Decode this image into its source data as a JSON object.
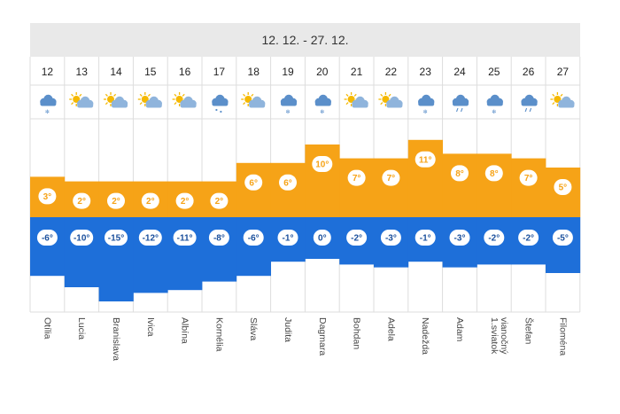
{
  "header": {
    "range": "12. 12. - 27. 12."
  },
  "colors": {
    "header_bg": "#e9e9e9",
    "warm": "#f6a317",
    "cold": "#1e6fd9",
    "grid": "#dddddd",
    "cloud": "#8fb4dc",
    "cloud_dark": "#5b8fca",
    "sun": "#f5b800"
  },
  "chart_data": {
    "type": "bar",
    "categories": [
      "12",
      "13",
      "14",
      "15",
      "16",
      "17",
      "18",
      "19",
      "20",
      "21",
      "22",
      "23",
      "24",
      "25",
      "26",
      "27"
    ],
    "series": [
      {
        "values": [
          3,
          2,
          2,
          2,
          2,
          2,
          6,
          6,
          10,
          7,
          7,
          11,
          8,
          8,
          7,
          5
        ]
      },
      {
        "values": [
          -6,
          -10,
          -15,
          -12,
          -11,
          -8,
          -6,
          -1,
          0,
          -2,
          -3,
          -1,
          -3,
          -2,
          -2,
          -5
        ]
      }
    ],
    "max_labels": [
      "3°",
      "2°",
      "2°",
      "2°",
      "2°",
      "2°",
      "6°",
      "6°",
      "10°",
      "7°",
      "7°",
      "11°",
      "8°",
      "8°",
      "7°",
      "5°"
    ],
    "min_labels": [
      "-6°",
      "-10°",
      "-15°",
      "-12°",
      "-11°",
      "-8°",
      "-6°",
      "-1°",
      "0°",
      "-2°",
      "-3°",
      "-1°",
      "-3°",
      "-2°",
      "-2°",
      "-5°"
    ],
    "names": [
      "Otília",
      "Lucia",
      "Branislava",
      "Ivica",
      "Albína",
      "Kornélia",
      "Sláva",
      "Judita",
      "Dagmara",
      "Bohdan",
      "Adela",
      "Nadežda",
      "Adam",
      "1.sviatok vianočný",
      "Štefan",
      "Filoména"
    ],
    "icons": [
      "cloud-snow-icon",
      "sun-cloud-icon",
      "sun-cloud-icon",
      "sun-cloud-icon",
      "sun-cloud-icon",
      "cloud-sleet-icon",
      "sun-cloud-icon",
      "cloud-snow-icon",
      "cloud-snow-icon",
      "sun-cloud-icon",
      "sun-cloud-icon",
      "cloud-snow-icon",
      "cloud-rain-icon",
      "cloud-snow-icon",
      "cloud-rain-icon",
      "sun-cloud-icon"
    ]
  }
}
